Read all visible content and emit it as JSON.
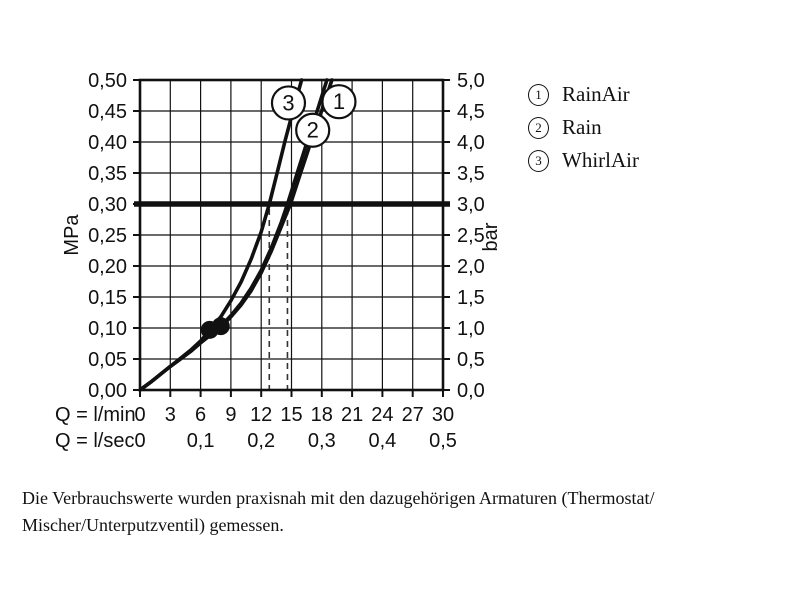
{
  "chart_data": {
    "type": "line",
    "colors": {
      "ink": "#111111",
      "dash": "#333333",
      "background": "#ffffff"
    },
    "grid": true,
    "axes": {
      "x_lmin": {
        "title": "Q = l/min",
        "range": [
          0,
          30
        ],
        "grid_step": 3,
        "ticks": [
          {
            "v": 0,
            "label": "0"
          },
          {
            "v": 3,
            "label": "3"
          },
          {
            "v": 6,
            "label": "6"
          },
          {
            "v": 9,
            "label": "9"
          },
          {
            "v": 12,
            "label": "12"
          },
          {
            "v": 15,
            "label": "15"
          },
          {
            "v": 18,
            "label": "18"
          },
          {
            "v": 21,
            "label": "21"
          },
          {
            "v": 24,
            "label": "24"
          },
          {
            "v": 27,
            "label": "27"
          },
          {
            "v": 30,
            "label": "30"
          }
        ]
      },
      "x_lsec": {
        "title": "Q = l/sec",
        "ticks": [
          {
            "v": 0,
            "label": "0"
          },
          {
            "v": 6,
            "label": "0,1"
          },
          {
            "v": 12,
            "label": "0,2"
          },
          {
            "v": 18,
            "label": "0,3"
          },
          {
            "v": 24,
            "label": "0,4"
          },
          {
            "v": 30,
            "label": "0,5"
          }
        ]
      },
      "y_mpa": {
        "title": "MPa",
        "range": [
          0,
          0.5
        ],
        "grid_step": 0.05,
        "ticks": [
          {
            "v": 0.0,
            "label": "0,00"
          },
          {
            "v": 0.05,
            "label": "0,05"
          },
          {
            "v": 0.1,
            "label": "0,10"
          },
          {
            "v": 0.15,
            "label": "0,15"
          },
          {
            "v": 0.2,
            "label": "0,20"
          },
          {
            "v": 0.25,
            "label": "0,25"
          },
          {
            "v": 0.3,
            "label": "0,30"
          },
          {
            "v": 0.35,
            "label": "0,35"
          },
          {
            "v": 0.4,
            "label": "0,40"
          },
          {
            "v": 0.45,
            "label": "0,45"
          },
          {
            "v": 0.5,
            "label": "0,50"
          }
        ]
      },
      "y_bar": {
        "title": "bar",
        "ticks": [
          {
            "v": 0.0,
            "label": "0,0"
          },
          {
            "v": 0.05,
            "label": "0,5"
          },
          {
            "v": 0.1,
            "label": "1,0"
          },
          {
            "v": 0.15,
            "label": "1,5"
          },
          {
            "v": 0.2,
            "label": "2,0"
          },
          {
            "v": 0.25,
            "label": "2,5"
          },
          {
            "v": 0.3,
            "label": "3,0"
          },
          {
            "v": 0.35,
            "label": "3,5"
          },
          {
            "v": 0.4,
            "label": "4,0"
          },
          {
            "v": 0.45,
            "label": "4,5"
          },
          {
            "v": 0.5,
            "label": "5,0"
          }
        ]
      }
    },
    "reference_line_mpa": 0.3,
    "dashed_guides_lmin": [
      12.8,
      14.6
    ],
    "markers": [
      {
        "q": 6.9,
        "p": 0.097
      },
      {
        "q": 8.0,
        "p": 0.103
      }
    ],
    "series": [
      {
        "id": "1",
        "name": "RainAir",
        "points": [
          [
            0,
            0
          ],
          [
            1,
            0.012
          ],
          [
            2,
            0.025
          ],
          [
            3,
            0.038
          ],
          [
            4,
            0.05
          ],
          [
            5,
            0.062
          ],
          [
            6,
            0.076
          ],
          [
            7,
            0.089
          ],
          [
            8,
            0.101
          ],
          [
            9,
            0.118
          ],
          [
            10,
            0.137
          ],
          [
            11,
            0.16
          ],
          [
            12,
            0.189
          ],
          [
            13,
            0.224
          ],
          [
            14,
            0.264
          ],
          [
            14.9,
            0.3
          ],
          [
            15.9,
            0.35
          ],
          [
            16.9,
            0.399
          ],
          [
            18,
            0.451
          ],
          [
            19,
            0.5
          ]
        ]
      },
      {
        "id": "2",
        "name": "Rain",
        "points": [
          [
            0,
            0
          ],
          [
            1,
            0.012
          ],
          [
            2,
            0.025
          ],
          [
            3,
            0.038
          ],
          [
            4,
            0.05
          ],
          [
            5,
            0.063
          ],
          [
            6,
            0.077
          ],
          [
            7,
            0.09
          ],
          [
            8,
            0.103
          ],
          [
            9,
            0.12
          ],
          [
            10,
            0.14
          ],
          [
            11,
            0.164
          ],
          [
            12,
            0.193
          ],
          [
            13,
            0.229
          ],
          [
            14,
            0.271
          ],
          [
            14.6,
            0.3
          ],
          [
            15.6,
            0.352
          ],
          [
            16.6,
            0.403
          ],
          [
            17.6,
            0.453
          ],
          [
            18.5,
            0.5
          ]
        ]
      },
      {
        "id": "3",
        "name": "WhirlAir",
        "points": [
          [
            0,
            0
          ],
          [
            1,
            0.012
          ],
          [
            2,
            0.025
          ],
          [
            3,
            0.038
          ],
          [
            4,
            0.051
          ],
          [
            5,
            0.064
          ],
          [
            6,
            0.079
          ],
          [
            6.9,
            0.096
          ],
          [
            8,
            0.118
          ],
          [
            9,
            0.144
          ],
          [
            10,
            0.174
          ],
          [
            11,
            0.211
          ],
          [
            12,
            0.255
          ],
          [
            12.8,
            0.3
          ],
          [
            13.6,
            0.352
          ],
          [
            14.4,
            0.404
          ],
          [
            15.2,
            0.453
          ],
          [
            16,
            0.5
          ]
        ]
      }
    ],
    "curve_labels": [
      {
        "text": "1",
        "q": 19.7,
        "p": 0.465
      },
      {
        "text": "2",
        "q": 17.1,
        "p": 0.419
      },
      {
        "text": "3",
        "q": 14.7,
        "p": 0.463
      }
    ]
  },
  "legend": {
    "items": [
      {
        "symbol": "1",
        "label": "RainAir"
      },
      {
        "symbol": "2",
        "label": "Rain"
      },
      {
        "symbol": "3",
        "label": "WhirlAir"
      }
    ]
  },
  "caption": {
    "line1": "Die Verbrauchswerte wurden praxisnah mit den dazugehörigen Armaturen (Thermostat/",
    "line2": "Mischer/Unterputzventil) gemessen."
  }
}
